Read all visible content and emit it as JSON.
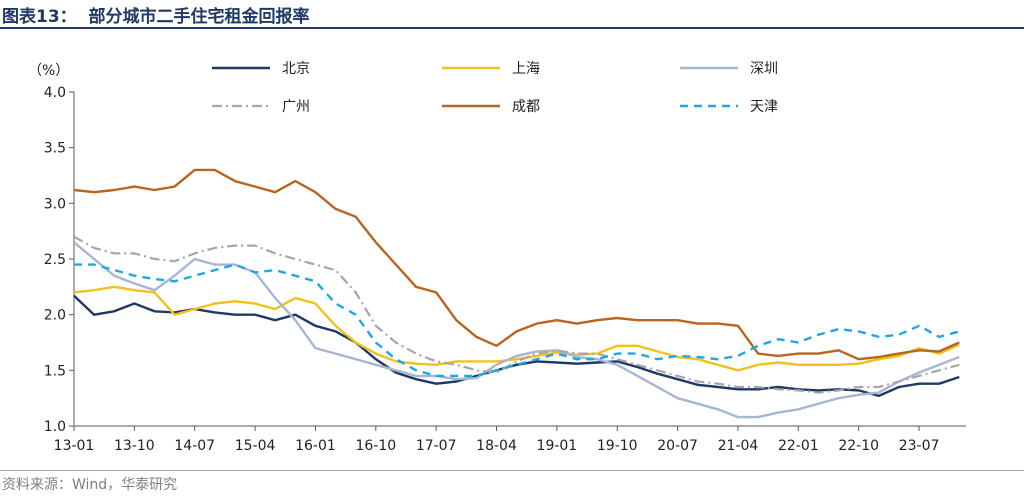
{
  "figure": {
    "title": "图表13：  部分城市二手住宅租金回报率",
    "source": "资料来源：Wind，华泰研究"
  },
  "chart_data": {
    "type": "line",
    "ylabel": "（%）",
    "ylim": [
      1.0,
      4.0
    ],
    "yticks": [
      "1.0",
      "1.5",
      "2.0",
      "2.5",
      "3.0",
      "3.5",
      "4.0"
    ],
    "xticks": [
      "13-01",
      "13-10",
      "14-07",
      "15-04",
      "16-01",
      "16-10",
      "17-07",
      "18-04",
      "19-01",
      "19-10",
      "20-07",
      "21-04",
      "22-01",
      "22-10",
      "23-07"
    ],
    "xlim": [
      "2013-01",
      "2024-02"
    ],
    "grid": false,
    "legend_position": "top",
    "series": [
      {
        "name": "北京",
        "color": "#1f3864",
        "dash": "",
        "width": 2.4,
        "points": [
          [
            "2013-01",
            2.17
          ],
          [
            "2013-04",
            2.0
          ],
          [
            "2013-07",
            2.03
          ],
          [
            "2013-10",
            2.1
          ],
          [
            "2014-01",
            2.03
          ],
          [
            "2014-04",
            2.02
          ],
          [
            "2014-07",
            2.05
          ],
          [
            "2014-10",
            2.02
          ],
          [
            "2015-01",
            2.0
          ],
          [
            "2015-04",
            2.0
          ],
          [
            "2015-07",
            1.95
          ],
          [
            "2015-10",
            2.0
          ],
          [
            "2016-01",
            1.9
          ],
          [
            "2016-04",
            1.85
          ],
          [
            "2016-07",
            1.75
          ],
          [
            "2016-10",
            1.6
          ],
          [
            "2017-01",
            1.48
          ],
          [
            "2017-04",
            1.42
          ],
          [
            "2017-07",
            1.38
          ],
          [
            "2017-10",
            1.4
          ],
          [
            "2018-01",
            1.45
          ],
          [
            "2018-04",
            1.5
          ],
          [
            "2018-07",
            1.55
          ],
          [
            "2018-10",
            1.58
          ],
          [
            "2019-01",
            1.57
          ],
          [
            "2019-04",
            1.56
          ],
          [
            "2019-07",
            1.57
          ],
          [
            "2019-10",
            1.58
          ],
          [
            "2020-01",
            1.53
          ],
          [
            "2020-04",
            1.47
          ],
          [
            "2020-07",
            1.42
          ],
          [
            "2020-10",
            1.37
          ],
          [
            "2021-01",
            1.35
          ],
          [
            "2021-04",
            1.33
          ],
          [
            "2021-07",
            1.33
          ],
          [
            "2021-10",
            1.35
          ],
          [
            "2022-01",
            1.33
          ],
          [
            "2022-04",
            1.32
          ],
          [
            "2022-07",
            1.33
          ],
          [
            "2022-10",
            1.32
          ],
          [
            "2023-01",
            1.27
          ],
          [
            "2023-04",
            1.35
          ],
          [
            "2023-07",
            1.38
          ],
          [
            "2023-10",
            1.38
          ],
          [
            "2024-01",
            1.44
          ]
        ]
      },
      {
        "name": "上海",
        "color": "#f2c21a",
        "dash": "",
        "width": 2.4,
        "points": [
          [
            "2013-01",
            2.2
          ],
          [
            "2013-04",
            2.22
          ],
          [
            "2013-07",
            2.25
          ],
          [
            "2013-10",
            2.22
          ],
          [
            "2014-01",
            2.2
          ],
          [
            "2014-04",
            2.0
          ],
          [
            "2014-07",
            2.05
          ],
          [
            "2014-10",
            2.1
          ],
          [
            "2015-01",
            2.12
          ],
          [
            "2015-04",
            2.1
          ],
          [
            "2015-07",
            2.05
          ],
          [
            "2015-10",
            2.15
          ],
          [
            "2016-01",
            2.1
          ],
          [
            "2016-04",
            1.9
          ],
          [
            "2016-07",
            1.75
          ],
          [
            "2016-10",
            1.65
          ],
          [
            "2017-01",
            1.58
          ],
          [
            "2017-04",
            1.56
          ],
          [
            "2017-07",
            1.55
          ],
          [
            "2017-10",
            1.58
          ],
          [
            "2018-01",
            1.58
          ],
          [
            "2018-04",
            1.58
          ],
          [
            "2018-07",
            1.6
          ],
          [
            "2018-10",
            1.63
          ],
          [
            "2019-01",
            1.66
          ],
          [
            "2019-04",
            1.64
          ],
          [
            "2019-07",
            1.65
          ],
          [
            "2019-10",
            1.72
          ],
          [
            "2020-01",
            1.72
          ],
          [
            "2020-04",
            1.67
          ],
          [
            "2020-07",
            1.62
          ],
          [
            "2020-10",
            1.6
          ],
          [
            "2021-01",
            1.55
          ],
          [
            "2021-04",
            1.5
          ],
          [
            "2021-07",
            1.55
          ],
          [
            "2021-10",
            1.57
          ],
          [
            "2022-01",
            1.55
          ],
          [
            "2022-04",
            1.55
          ],
          [
            "2022-07",
            1.55
          ],
          [
            "2022-10",
            1.56
          ],
          [
            "2023-01",
            1.6
          ],
          [
            "2023-04",
            1.63
          ],
          [
            "2023-07",
            1.7
          ],
          [
            "2023-10",
            1.65
          ],
          [
            "2024-01",
            1.73
          ]
        ]
      },
      {
        "name": "深圳",
        "color": "#a6b6d3",
        "dash": "",
        "width": 2.4,
        "points": [
          [
            "2013-01",
            2.65
          ],
          [
            "2013-04",
            2.5
          ],
          [
            "2013-07",
            2.35
          ],
          [
            "2013-10",
            2.28
          ],
          [
            "2014-01",
            2.22
          ],
          [
            "2014-04",
            2.35
          ],
          [
            "2014-07",
            2.5
          ],
          [
            "2014-10",
            2.45
          ],
          [
            "2015-01",
            2.45
          ],
          [
            "2015-04",
            2.38
          ],
          [
            "2015-07",
            2.15
          ],
          [
            "2015-10",
            1.95
          ],
          [
            "2016-01",
            1.7
          ],
          [
            "2016-04",
            1.65
          ],
          [
            "2016-07",
            1.6
          ],
          [
            "2016-10",
            1.55
          ],
          [
            "2017-01",
            1.5
          ],
          [
            "2017-04",
            1.45
          ],
          [
            "2017-07",
            1.45
          ],
          [
            "2017-10",
            1.42
          ],
          [
            "2018-01",
            1.43
          ],
          [
            "2018-04",
            1.55
          ],
          [
            "2018-07",
            1.63
          ],
          [
            "2018-10",
            1.67
          ],
          [
            "2019-01",
            1.68
          ],
          [
            "2019-04",
            1.62
          ],
          [
            "2019-07",
            1.6
          ],
          [
            "2019-10",
            1.55
          ],
          [
            "2020-01",
            1.45
          ],
          [
            "2020-04",
            1.35
          ],
          [
            "2020-07",
            1.25
          ],
          [
            "2020-10",
            1.2
          ],
          [
            "2021-01",
            1.15
          ],
          [
            "2021-04",
            1.08
          ],
          [
            "2021-07",
            1.08
          ],
          [
            "2021-10",
            1.12
          ],
          [
            "2022-01",
            1.15
          ],
          [
            "2022-04",
            1.2
          ],
          [
            "2022-07",
            1.25
          ],
          [
            "2022-10",
            1.28
          ],
          [
            "2023-01",
            1.3
          ],
          [
            "2023-04",
            1.4
          ],
          [
            "2023-07",
            1.48
          ],
          [
            "2023-10",
            1.55
          ],
          [
            "2024-01",
            1.62
          ]
        ]
      },
      {
        "name": "广州",
        "color": "#a6a6a6",
        "dash": "10,4,2,4",
        "width": 2.2,
        "points": [
          [
            "2013-01",
            2.7
          ],
          [
            "2013-04",
            2.6
          ],
          [
            "2013-07",
            2.55
          ],
          [
            "2013-10",
            2.55
          ],
          [
            "2014-01",
            2.5
          ],
          [
            "2014-04",
            2.48
          ],
          [
            "2014-07",
            2.55
          ],
          [
            "2014-10",
            2.6
          ],
          [
            "2015-01",
            2.62
          ],
          [
            "2015-04",
            2.62
          ],
          [
            "2015-07",
            2.55
          ],
          [
            "2015-10",
            2.5
          ],
          [
            "2016-01",
            2.45
          ],
          [
            "2016-04",
            2.4
          ],
          [
            "2016-07",
            2.2
          ],
          [
            "2016-10",
            1.9
          ],
          [
            "2017-01",
            1.75
          ],
          [
            "2017-04",
            1.65
          ],
          [
            "2017-07",
            1.58
          ],
          [
            "2017-10",
            1.55
          ],
          [
            "2018-01",
            1.5
          ],
          [
            "2018-04",
            1.48
          ],
          [
            "2018-07",
            1.58
          ],
          [
            "2018-10",
            1.65
          ],
          [
            "2019-01",
            1.68
          ],
          [
            "2019-04",
            1.65
          ],
          [
            "2019-07",
            1.65
          ],
          [
            "2019-10",
            1.6
          ],
          [
            "2020-01",
            1.55
          ],
          [
            "2020-04",
            1.5
          ],
          [
            "2020-07",
            1.45
          ],
          [
            "2020-10",
            1.4
          ],
          [
            "2021-01",
            1.38
          ],
          [
            "2021-04",
            1.35
          ],
          [
            "2021-07",
            1.35
          ],
          [
            "2021-10",
            1.33
          ],
          [
            "2022-01",
            1.32
          ],
          [
            "2022-04",
            1.3
          ],
          [
            "2022-07",
            1.32
          ],
          [
            "2022-10",
            1.35
          ],
          [
            "2023-01",
            1.35
          ],
          [
            "2023-04",
            1.4
          ],
          [
            "2023-07",
            1.45
          ],
          [
            "2023-10",
            1.5
          ],
          [
            "2024-01",
            1.55
          ]
        ]
      },
      {
        "name": "成都",
        "color": "#b8651e",
        "dash": "",
        "width": 2.4,
        "points": [
          [
            "2013-01",
            3.12
          ],
          [
            "2013-04",
            3.1
          ],
          [
            "2013-07",
            3.12
          ],
          [
            "2013-10",
            3.15
          ],
          [
            "2014-01",
            3.12
          ],
          [
            "2014-04",
            3.15
          ],
          [
            "2014-07",
            3.3
          ],
          [
            "2014-10",
            3.3
          ],
          [
            "2015-01",
            3.2
          ],
          [
            "2015-04",
            3.15
          ],
          [
            "2015-07",
            3.1
          ],
          [
            "2015-10",
            3.2
          ],
          [
            "2016-01",
            3.1
          ],
          [
            "2016-04",
            2.95
          ],
          [
            "2016-07",
            2.88
          ],
          [
            "2016-10",
            2.65
          ],
          [
            "2017-01",
            2.45
          ],
          [
            "2017-04",
            2.25
          ],
          [
            "2017-07",
            2.2
          ],
          [
            "2017-10",
            1.95
          ],
          [
            "2018-01",
            1.8
          ],
          [
            "2018-04",
            1.72
          ],
          [
            "2018-07",
            1.85
          ],
          [
            "2018-10",
            1.92
          ],
          [
            "2019-01",
            1.95
          ],
          [
            "2019-04",
            1.92
          ],
          [
            "2019-07",
            1.95
          ],
          [
            "2019-10",
            1.97
          ],
          [
            "2020-01",
            1.95
          ],
          [
            "2020-04",
            1.95
          ],
          [
            "2020-07",
            1.95
          ],
          [
            "2020-10",
            1.92
          ],
          [
            "2021-01",
            1.92
          ],
          [
            "2021-04",
            1.9
          ],
          [
            "2021-07",
            1.65
          ],
          [
            "2021-10",
            1.63
          ],
          [
            "2022-01",
            1.65
          ],
          [
            "2022-04",
            1.65
          ],
          [
            "2022-07",
            1.68
          ],
          [
            "2022-10",
            1.6
          ],
          [
            "2023-01",
            1.62
          ],
          [
            "2023-04",
            1.65
          ],
          [
            "2023-07",
            1.68
          ],
          [
            "2023-10",
            1.67
          ],
          [
            "2024-01",
            1.75
          ]
        ]
      },
      {
        "name": "天津",
        "color": "#21a7e0",
        "dash": "8,6",
        "width": 2.4,
        "points": [
          [
            "2013-01",
            2.45
          ],
          [
            "2013-04",
            2.45
          ],
          [
            "2013-07",
            2.4
          ],
          [
            "2013-10",
            2.35
          ],
          [
            "2014-01",
            2.32
          ],
          [
            "2014-04",
            2.3
          ],
          [
            "2014-07",
            2.35
          ],
          [
            "2014-10",
            2.4
          ],
          [
            "2015-01",
            2.45
          ],
          [
            "2015-04",
            2.38
          ],
          [
            "2015-07",
            2.4
          ],
          [
            "2015-10",
            2.35
          ],
          [
            "2016-01",
            2.3
          ],
          [
            "2016-04",
            2.1
          ],
          [
            "2016-07",
            2.0
          ],
          [
            "2016-10",
            1.75
          ],
          [
            "2017-01",
            1.6
          ],
          [
            "2017-04",
            1.5
          ],
          [
            "2017-07",
            1.45
          ],
          [
            "2017-10",
            1.45
          ],
          [
            "2018-01",
            1.45
          ],
          [
            "2018-04",
            1.5
          ],
          [
            "2018-07",
            1.55
          ],
          [
            "2018-10",
            1.6
          ],
          [
            "2019-01",
            1.65
          ],
          [
            "2019-04",
            1.6
          ],
          [
            "2019-07",
            1.6
          ],
          [
            "2019-10",
            1.65
          ],
          [
            "2020-01",
            1.65
          ],
          [
            "2020-04",
            1.6
          ],
          [
            "2020-07",
            1.63
          ],
          [
            "2020-10",
            1.62
          ],
          [
            "2021-01",
            1.6
          ],
          [
            "2021-04",
            1.63
          ],
          [
            "2021-07",
            1.72
          ],
          [
            "2021-10",
            1.78
          ],
          [
            "2022-01",
            1.75
          ],
          [
            "2022-04",
            1.82
          ],
          [
            "2022-07",
            1.87
          ],
          [
            "2022-10",
            1.85
          ],
          [
            "2023-01",
            1.8
          ],
          [
            "2023-04",
            1.82
          ],
          [
            "2023-07",
            1.9
          ],
          [
            "2023-10",
            1.8
          ],
          [
            "2024-01",
            1.85
          ]
        ]
      }
    ]
  }
}
